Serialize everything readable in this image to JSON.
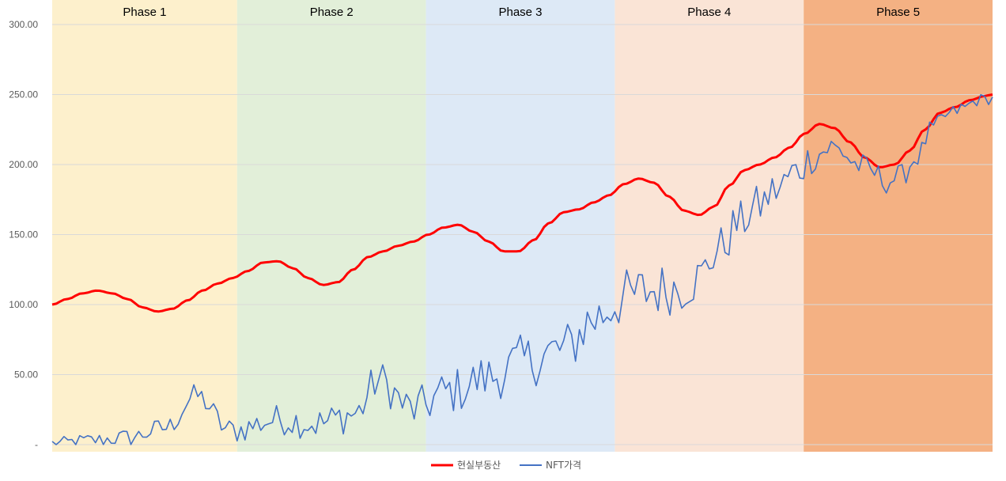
{
  "chart_data": {
    "type": "line",
    "title": "",
    "xlabel": "",
    "ylabel": "",
    "ylim": [
      0,
      300
    ],
    "y_ticks": [
      "-",
      "50.00",
      "100.00",
      "150.00",
      "200.00",
      "250.00",
      "300.00"
    ],
    "grid": "horizontal",
    "legend_position": "bottom",
    "n_points": 240,
    "phases": [
      {
        "label": "Phase 1",
        "start": 0,
        "end": 47,
        "color": "#fdf0cc"
      },
      {
        "label": "Phase 2",
        "start": 47,
        "end": 95,
        "color": "#e2efd9"
      },
      {
        "label": "Phase 3",
        "start": 95,
        "end": 143,
        "color": "#dde9f6"
      },
      {
        "label": "Phase 4",
        "start": 143,
        "end": 191,
        "color": "#fae4d6"
      },
      {
        "label": "Phase 5",
        "start": 191,
        "end": 239,
        "color": "#f4b183"
      }
    ],
    "series": [
      {
        "name": "현실부동산",
        "color": "#ff0000",
        "anchors": [
          [
            0,
            100
          ],
          [
            4,
            104
          ],
          [
            8,
            108
          ],
          [
            12,
            110
          ],
          [
            16,
            108
          ],
          [
            20,
            104
          ],
          [
            24,
            98
          ],
          [
            28,
            95
          ],
          [
            32,
            97
          ],
          [
            36,
            103
          ],
          [
            40,
            110
          ],
          [
            44,
            115
          ],
          [
            48,
            119
          ],
          [
            52,
            124
          ],
          [
            56,
            130
          ],
          [
            60,
            131
          ],
          [
            64,
            126
          ],
          [
            68,
            119
          ],
          [
            72,
            114
          ],
          [
            76,
            116
          ],
          [
            80,
            125
          ],
          [
            84,
            134
          ],
          [
            88,
            138
          ],
          [
            92,
            142
          ],
          [
            96,
            145
          ],
          [
            100,
            150
          ],
          [
            104,
            155
          ],
          [
            108,
            157
          ],
          [
            112,
            152
          ],
          [
            116,
            145
          ],
          [
            120,
            138
          ],
          [
            124,
            138
          ],
          [
            128,
            146
          ],
          [
            132,
            158
          ],
          [
            136,
            166
          ],
          [
            140,
            168
          ],
          [
            144,
            173
          ],
          [
            148,
            178
          ],
          [
            152,
            186
          ],
          [
            156,
            190
          ],
          [
            160,
            187
          ],
          [
            164,
            177
          ],
          [
            168,
            167
          ],
          [
            172,
            164
          ],
          [
            176,
            170
          ],
          [
            180,
            185
          ],
          [
            184,
            196
          ],
          [
            188,
            200
          ],
          [
            192,
            205
          ],
          [
            196,
            212
          ],
          [
            200,
            222
          ],
          [
            204,
            229
          ],
          [
            208,
            226
          ],
          [
            212,
            216
          ],
          [
            216,
            205
          ],
          [
            220,
            198
          ],
          [
            224,
            200
          ],
          [
            228,
            210
          ],
          [
            232,
            225
          ],
          [
            236,
            237
          ],
          [
            240,
            241
          ],
          [
            244,
            246
          ],
          [
            248,
            249
          ],
          [
            250,
            250
          ]
        ]
      },
      {
        "name": "NFT가격",
        "color": "#4472c4",
        "anchors": [
          [
            0,
            1
          ],
          [
            10,
            3
          ],
          [
            20,
            5
          ],
          [
            30,
            12
          ],
          [
            38,
            35
          ],
          [
            47,
            10
          ],
          [
            60,
            18
          ],
          [
            70,
            15
          ],
          [
            80,
            22
          ],
          [
            86,
            46
          ],
          [
            95,
            25
          ],
          [
            105,
            38
          ],
          [
            115,
            48
          ],
          [
            125,
            60
          ],
          [
            135,
            68
          ],
          [
            143,
            90
          ],
          [
            150,
            104
          ],
          [
            158,
            110
          ],
          [
            165,
            112
          ],
          [
            170,
            118
          ],
          [
            176,
            140
          ],
          [
            181,
            158
          ],
          [
            186,
            170
          ],
          [
            191,
            182
          ],
          [
            196,
            195
          ],
          [
            201,
            206
          ],
          [
            205,
            212
          ],
          [
            208,
            210
          ],
          [
            212,
            200
          ],
          [
            216,
            195
          ],
          [
            220,
            188
          ],
          [
            224,
            192
          ],
          [
            228,
            205
          ],
          [
            232,
            225
          ],
          [
            236,
            235
          ],
          [
            240,
            240
          ],
          [
            244,
            246
          ],
          [
            248,
            247
          ]
        ]
      }
    ]
  }
}
